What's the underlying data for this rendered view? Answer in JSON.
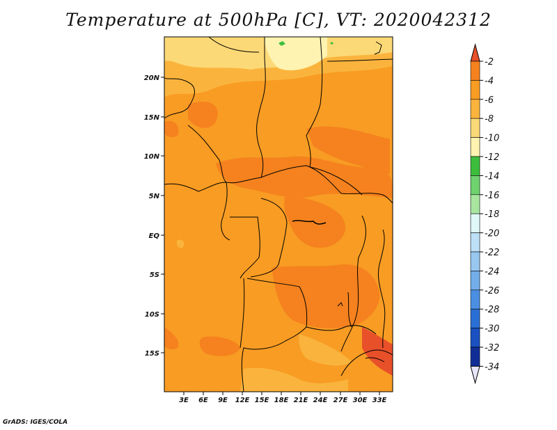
{
  "title": "Temperature at 500hPa [C], VT: 2020042312",
  "credit": "GrADS: IGES/COLA",
  "lon_ticks": [
    "3E",
    "6E",
    "9E",
    "12E",
    "15E",
    "18E",
    "21E",
    "24E",
    "27E",
    "30E",
    "33E"
  ],
  "lat_ticks": [
    "20N",
    "15N",
    "10N",
    "5N",
    "EQ",
    "5S",
    "10S",
    "15S"
  ],
  "colorbar": {
    "labels": [
      "-2",
      "-4",
      "-6",
      "-8",
      "-10",
      "-12",
      "-14",
      "-16",
      "-18",
      "-20",
      "-22",
      "-24",
      "-26",
      "-28",
      "-30",
      "-32",
      "-34"
    ],
    "colors": [
      "#e8502a",
      "#f5821e",
      "#f89c23",
      "#fab43d",
      "#fcd977",
      "#fef3b0",
      "#3cbe3c",
      "#6ed26e",
      "#a8e6a0",
      "#e0f8f8",
      "#bde0f8",
      "#98c8f0",
      "#73aeea",
      "#4a8fe2",
      "#2a6fd6",
      "#1a50c0",
      "#102e96",
      "#0a1a6e",
      "#e6e6fa"
    ]
  },
  "colors": {
    "dominant": "#f89c23",
    "warm": "#f5821e",
    "cool": "#fab43d",
    "coolest": "#fcd977",
    "border": "#000000"
  }
}
